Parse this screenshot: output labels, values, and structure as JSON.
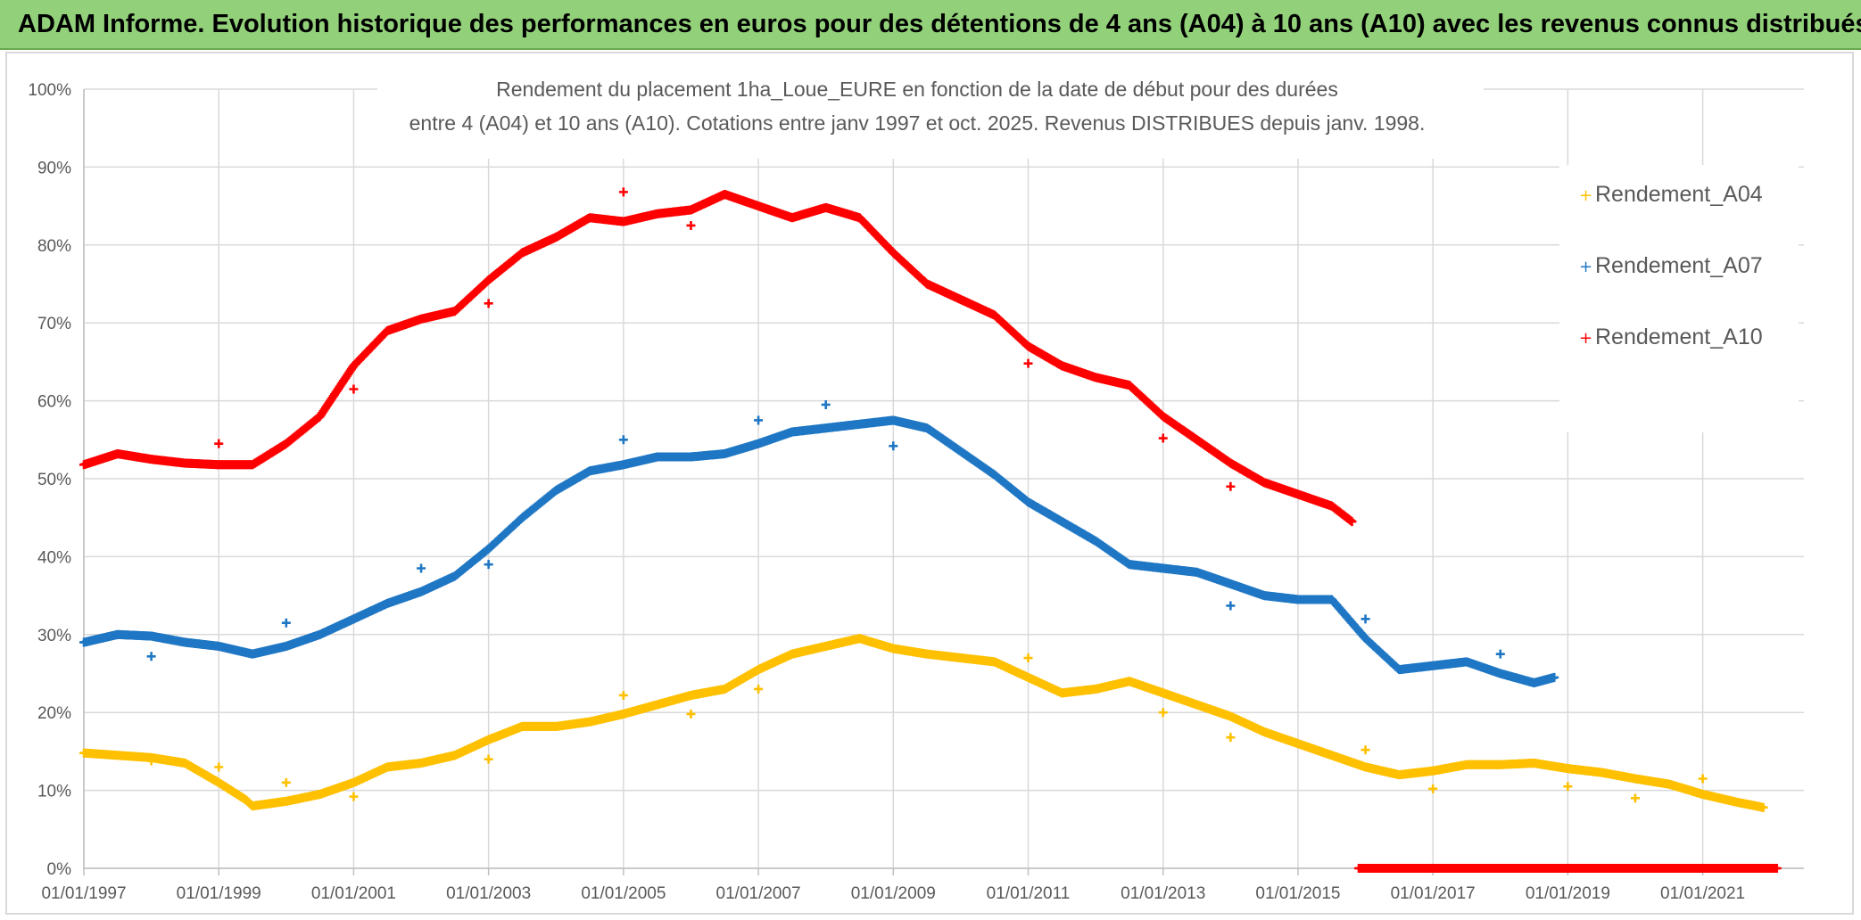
{
  "header": {
    "title": "ADAM Informe. Evolution historique des performances en euros pour des détentions de 4 ans (A04) à 10 ans (A10) avec les revenus connus distribués"
  },
  "colors": {
    "A04": "#ffc000",
    "A07": "#1f77c4",
    "A10": "#ff0000",
    "grid": "#d9d9d9",
    "text": "#595959"
  },
  "chart_data": {
    "type": "scatter",
    "title_lines": [
      "Rendement du placement 1ha_Loue_EURE en fonction de la date de début pour des durées",
      "entre 4 (A04) et 10 ans (A10). Cotations entre janv 1997 et oct. 2025. Revenus DISTRIBUES depuis janv. 1998."
    ],
    "xlabel": "",
    "ylabel": "",
    "x_range": [
      1997.0,
      2022.5
    ],
    "ylim": [
      0,
      100
    ],
    "y_ticks": [
      "0%",
      "10%",
      "20%",
      "30%",
      "40%",
      "50%",
      "60%",
      "70%",
      "80%",
      "90%",
      "100%"
    ],
    "x_ticks": [
      {
        "label": "01/01/1997",
        "x": 1997
      },
      {
        "label": "01/01/1999",
        "x": 1999
      },
      {
        "label": "01/01/2001",
        "x": 2001
      },
      {
        "label": "01/01/2003",
        "x": 2003
      },
      {
        "label": "01/01/2005",
        "x": 2005
      },
      {
        "label": "01/01/2007",
        "x": 2007
      },
      {
        "label": "01/01/2009",
        "x": 2009
      },
      {
        "label": "01/01/2011",
        "x": 2011
      },
      {
        "label": "01/01/2013",
        "x": 2013
      },
      {
        "label": "01/01/2015",
        "x": 2015
      },
      {
        "label": "01/01/2017",
        "x": 2017
      },
      {
        "label": "01/01/2019",
        "x": 2019
      },
      {
        "label": "01/01/2021",
        "x": 2021
      }
    ],
    "legend_position": "right",
    "series": [
      {
        "name": "Rendement_A04",
        "color": "#ffc000",
        "points": [
          [
            1997.0,
            14.8
          ],
          [
            1997.5,
            14.5
          ],
          [
            1998.0,
            14.2
          ],
          [
            1998.5,
            13.5
          ],
          [
            1999.0,
            11.0
          ],
          [
            1999.4,
            8.8
          ],
          [
            1999.5,
            8.0
          ],
          [
            2000.0,
            8.6
          ],
          [
            2000.5,
            9.5
          ],
          [
            2001.0,
            11.0
          ],
          [
            2001.5,
            13.0
          ],
          [
            2002.0,
            13.5
          ],
          [
            2002.5,
            14.5
          ],
          [
            2003.0,
            16.5
          ],
          [
            2003.5,
            18.2
          ],
          [
            2004.0,
            18.2
          ],
          [
            2004.5,
            18.8
          ],
          [
            2005.0,
            19.8
          ],
          [
            2005.5,
            21.0
          ],
          [
            2006.0,
            22.2
          ],
          [
            2006.5,
            23.0
          ],
          [
            2007.0,
            25.5
          ],
          [
            2007.5,
            27.5
          ],
          [
            2008.0,
            28.5
          ],
          [
            2008.5,
            29.5
          ],
          [
            2009.0,
            28.2
          ],
          [
            2009.5,
            27.5
          ],
          [
            2010.0,
            27.0
          ],
          [
            2010.5,
            26.5
          ],
          [
            2011.0,
            24.5
          ],
          [
            2011.5,
            22.5
          ],
          [
            2012.0,
            23.0
          ],
          [
            2012.5,
            24.0
          ],
          [
            2013.0,
            22.5
          ],
          [
            2013.5,
            21.0
          ],
          [
            2014.0,
            19.5
          ],
          [
            2014.5,
            17.5
          ],
          [
            2015.0,
            16.0
          ],
          [
            2015.5,
            14.5
          ],
          [
            2016.0,
            13.0
          ],
          [
            2016.5,
            12.0
          ],
          [
            2017.0,
            12.5
          ],
          [
            2017.5,
            13.3
          ],
          [
            2018.0,
            13.3
          ],
          [
            2018.5,
            13.5
          ],
          [
            2019.0,
            12.8
          ],
          [
            2019.5,
            12.3
          ],
          [
            2020.0,
            11.5
          ],
          [
            2020.5,
            10.8
          ],
          [
            2021.0,
            9.5
          ],
          [
            2021.5,
            8.5
          ],
          [
            2021.9,
            7.8
          ]
        ],
        "outliers": [
          [
            1998.0,
            13.8
          ],
          [
            1999.0,
            13.0
          ],
          [
            2000.0,
            11.0
          ],
          [
            2001.0,
            9.2
          ],
          [
            2003.0,
            14.0
          ],
          [
            2005.0,
            22.2
          ],
          [
            2006.0,
            19.8
          ],
          [
            2007.0,
            23.0
          ],
          [
            2011.0,
            27.0
          ],
          [
            2013.0,
            20.0
          ],
          [
            2014.0,
            16.8
          ],
          [
            2016.0,
            15.2
          ],
          [
            2017.0,
            10.2
          ],
          [
            2019.0,
            10.5
          ],
          [
            2020.0,
            9.0
          ],
          [
            2021.0,
            11.5
          ]
        ]
      },
      {
        "name": "Rendement_A07",
        "color": "#1f77c4",
        "points": [
          [
            1997.0,
            29.0
          ],
          [
            1997.5,
            30.0
          ],
          [
            1998.0,
            29.8
          ],
          [
            1998.5,
            29.0
          ],
          [
            1999.0,
            28.5
          ],
          [
            1999.5,
            27.5
          ],
          [
            2000.0,
            28.5
          ],
          [
            2000.5,
            30.0
          ],
          [
            2001.0,
            32.0
          ],
          [
            2001.5,
            34.0
          ],
          [
            2002.0,
            35.5
          ],
          [
            2002.5,
            37.5
          ],
          [
            2003.0,
            41.0
          ],
          [
            2003.5,
            45.0
          ],
          [
            2004.0,
            48.5
          ],
          [
            2004.5,
            51.0
          ],
          [
            2005.0,
            51.8
          ],
          [
            2005.5,
            52.8
          ],
          [
            2006.0,
            52.8
          ],
          [
            2006.5,
            53.2
          ],
          [
            2007.0,
            54.5
          ],
          [
            2007.5,
            56.0
          ],
          [
            2008.0,
            56.5
          ],
          [
            2008.5,
            57.0
          ],
          [
            2009.0,
            57.5
          ],
          [
            2009.5,
            56.5
          ],
          [
            2010.0,
            53.5
          ],
          [
            2010.5,
            50.5
          ],
          [
            2011.0,
            47.0
          ],
          [
            2011.5,
            44.5
          ],
          [
            2012.0,
            42.0
          ],
          [
            2012.5,
            39.0
          ],
          [
            2013.0,
            38.5
          ],
          [
            2013.5,
            38.0
          ],
          [
            2014.0,
            36.5
          ],
          [
            2014.5,
            35.0
          ],
          [
            2015.0,
            34.5
          ],
          [
            2015.5,
            34.5
          ],
          [
            2016.0,
            29.5
          ],
          [
            2016.5,
            25.5
          ],
          [
            2017.0,
            26.0
          ],
          [
            2017.5,
            26.5
          ],
          [
            2018.0,
            25.0
          ],
          [
            2018.5,
            23.8
          ],
          [
            2018.8,
            24.5
          ]
        ],
        "outliers": [
          [
            1998.0,
            27.2
          ],
          [
            2000.0,
            31.5
          ],
          [
            2002.0,
            38.5
          ],
          [
            2003.0,
            39.0
          ],
          [
            2005.0,
            55.0
          ],
          [
            2007.0,
            57.5
          ],
          [
            2008.0,
            59.5
          ],
          [
            2009.0,
            54.2
          ],
          [
            2014.0,
            33.7
          ],
          [
            2016.0,
            32.0
          ],
          [
            2018.0,
            27.5
          ]
        ]
      },
      {
        "name": "Rendement_A10",
        "color": "#ff0000",
        "points": [
          [
            1997.0,
            51.8
          ],
          [
            1997.5,
            53.2
          ],
          [
            1998.0,
            52.5
          ],
          [
            1998.5,
            52.0
          ],
          [
            1999.0,
            51.8
          ],
          [
            1999.5,
            51.8
          ],
          [
            2000.0,
            54.5
          ],
          [
            2000.5,
            58.0
          ],
          [
            2001.0,
            64.5
          ],
          [
            2001.5,
            69.0
          ],
          [
            2002.0,
            70.5
          ],
          [
            2002.5,
            71.5
          ],
          [
            2003.0,
            75.5
          ],
          [
            2003.5,
            79.0
          ],
          [
            2004.0,
            81.0
          ],
          [
            2004.5,
            83.5
          ],
          [
            2005.0,
            83.0
          ],
          [
            2005.5,
            84.0
          ],
          [
            2006.0,
            84.5
          ],
          [
            2006.5,
            86.5
          ],
          [
            2007.0,
            85.0
          ],
          [
            2007.5,
            83.5
          ],
          [
            2008.0,
            84.8
          ],
          [
            2008.5,
            83.5
          ],
          [
            2009.0,
            79.0
          ],
          [
            2009.5,
            75.0
          ],
          [
            2010.0,
            73.0
          ],
          [
            2010.5,
            71.0
          ],
          [
            2011.0,
            67.0
          ],
          [
            2011.5,
            64.5
          ],
          [
            2012.0,
            63.0
          ],
          [
            2012.5,
            62.0
          ],
          [
            2013.0,
            58.0
          ],
          [
            2013.5,
            55.0
          ],
          [
            2014.0,
            52.0
          ],
          [
            2014.5,
            49.5
          ],
          [
            2015.0,
            48.0
          ],
          [
            2015.5,
            46.5
          ],
          [
            2015.8,
            44.5
          ]
        ],
        "outliers": [
          [
            1999.0,
            54.5
          ],
          [
            2001.0,
            61.5
          ],
          [
            2003.0,
            72.5
          ],
          [
            2005.0,
            86.8
          ],
          [
            2006.0,
            82.5
          ],
          [
            2011.0,
            64.8
          ],
          [
            2013.0,
            55.2
          ],
          [
            2014.0,
            49.0
          ]
        ],
        "zero_segment": [
          2015.9,
          2022.1
        ]
      }
    ]
  }
}
